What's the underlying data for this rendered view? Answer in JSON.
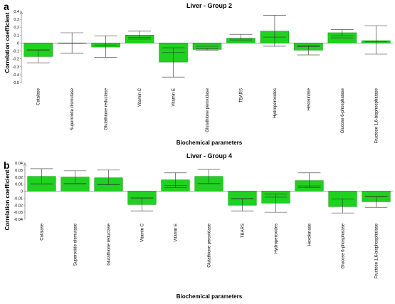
{
  "chart_data": [
    {
      "panel": "a",
      "type": "bar",
      "title": "Liver - Group 2",
      "xlabel": "Biochemical parameters",
      "ylabel": "Correlation coefficient",
      "ylim": [
        -0.5,
        0.4
      ],
      "yticks": [
        -0.5,
        -0.4,
        -0.3,
        -0.2,
        -0.1,
        0,
        0.1,
        0.2,
        0.3,
        0.4
      ],
      "ytick_labels": [
        "-0.5",
        "-0.4",
        "-0.3",
        "-0.2",
        "-0.1",
        "0",
        "0.1",
        "0.2",
        "0.3",
        "0.4"
      ],
      "categories": [
        "Catalase",
        "Superoxide dismutase",
        "Glutathione reductase",
        "Vitamin C",
        "Vitamin E",
        "Glutathione peroxidase",
        "TBARS",
        "Hydroperoxides",
        "Hexokinase",
        "Glucose 6-phosphatase",
        "Fructose 1,6-bisphosphatase"
      ],
      "values": [
        -0.17,
        0.0,
        -0.05,
        0.1,
        -0.24,
        -0.08,
        0.06,
        0.15,
        -0.09,
        0.13,
        0.03
      ],
      "error_low": [
        -0.25,
        -0.13,
        -0.18,
        0.07,
        -0.43,
        -0.09,
        0.05,
        -0.04,
        -0.15,
        0.09,
        -0.14
      ],
      "error_high": [
        -0.09,
        0.13,
        0.09,
        0.15,
        -0.06,
        -0.07,
        0.11,
        0.35,
        -0.03,
        0.17,
        0.22
      ],
      "grid": false,
      "bar_color": "#1fd21f"
    },
    {
      "panel": "b",
      "type": "bar",
      "title": "Liver - Group 4",
      "xlabel": "Biochemical parameters",
      "ylabel": "Correlation coefficient",
      "ylim": [
        -0.04,
        0.04
      ],
      "yticks": [
        -0.04,
        -0.03,
        -0.02,
        -0.01,
        0,
        0.01,
        0.02,
        0.03,
        0.04
      ],
      "ytick_labels": [
        "-0.04",
        "-0.03",
        "-0.02",
        "-0.01",
        "0",
        "0.01",
        "0.02",
        "0.03",
        "0.04"
      ],
      "categories": [
        "Catalase",
        "Superoxide dismutase",
        "Glutathione reductase",
        "Vitamin C",
        "Vitamin E",
        "Glutathione peroxidase",
        "TBARS",
        "Hydroperoxides",
        "Hexokinase",
        "Glucose 6-phosphatase",
        "Fructose 1,6-bisphosphatase"
      ],
      "values": [
        0.021,
        0.02,
        0.019,
        -0.019,
        0.016,
        0.021,
        -0.02,
        -0.017,
        0.015,
        -0.022,
        -0.015
      ],
      "error_low": [
        0.01,
        0.011,
        0.009,
        -0.028,
        0.005,
        0.011,
        -0.028,
        -0.03,
        0.005,
        -0.031,
        -0.023
      ],
      "error_high": [
        0.032,
        0.029,
        0.03,
        -0.01,
        0.026,
        0.031,
        -0.011,
        -0.004,
        0.026,
        -0.011,
        -0.008
      ],
      "grid": false,
      "bar_color": "#1fd21f"
    }
  ]
}
